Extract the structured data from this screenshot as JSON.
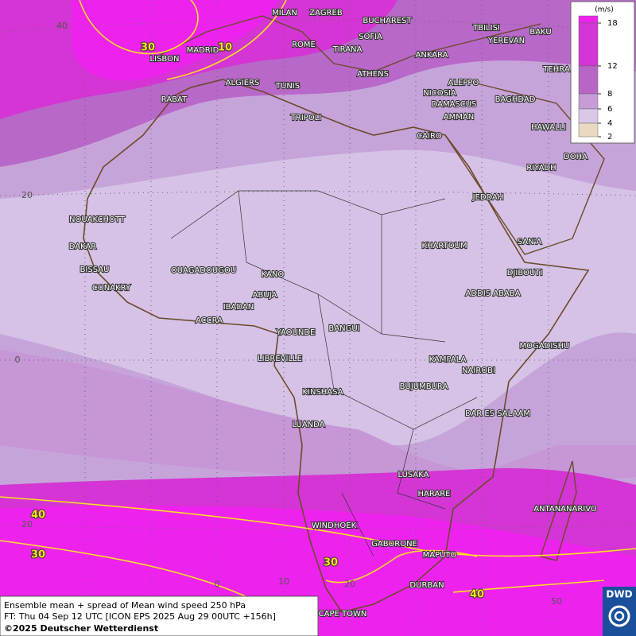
{
  "map": {
    "legend": {
      "unit": "(m/s)",
      "levels": [
        {
          "value": 18,
          "color": "#ee22ee"
        },
        {
          "value": 12,
          "color": "#d435d4"
        },
        {
          "value": 8,
          "color": "#b866c6"
        },
        {
          "value": 6,
          "color": "#c79bd8"
        },
        {
          "value": 4,
          "color": "#dac8e8"
        },
        {
          "value": 2,
          "color": "#ead9c0"
        }
      ]
    },
    "cities": [
      "MILAN",
      "ZAGREB",
      "BUCHAREST",
      "TBILISI",
      "BAKU",
      "SOFIA",
      "YEREVAN",
      "ROME",
      "TIRANA",
      "ANKARA",
      "LISBON",
      "MADRID",
      "TEHRA",
      "ATHENS",
      "ALGIERS",
      "TUNIS",
      "ALEPPO",
      "NICOSIA",
      "BAGHDAD",
      "RABAT",
      "DAMASCUS",
      "TRIPOLI",
      "AMMAN",
      "HAWALLI",
      "CAIRO",
      "DOHA",
      "RIYADH",
      "JEDDAH",
      "NOUAKCHOTT",
      "SAN'A",
      "KHARTOUM",
      "DAKAR",
      "BISSAU",
      "DJIBOUTI",
      "OUAGADOUGOU",
      "KANO",
      "CONAKRY",
      "ABUJA",
      "ADDIS ABABA",
      "IBADAN",
      "ACCRA",
      "BANGUI",
      "YAOUNDE",
      "MOGADISHU",
      "LIBREVILLE",
      "KAMPALA",
      "NAIROBI",
      "KINSHASA",
      "BUJUMBURA",
      "DAR ES SALAAM",
      "LUANDA",
      "LUSAKA",
      "HARARE",
      "ANTANANARIVO",
      "WINDHOEK",
      "GABORONE",
      "MAPUTO",
      "DURBAN",
      "CAPE TOWN"
    ],
    "contour_labels": [
      "30",
      "10",
      "40",
      "30",
      "30",
      "40"
    ],
    "lat_labels": [
      "40",
      "20",
      "0",
      "20"
    ],
    "lon_labels": [
      "0",
      "10",
      "20",
      "50"
    ],
    "footer": {
      "line1": "Ensemble mean + spread of Mean wind speed 250 hPa",
      "line2": "FT: Thu 04 Sep 12 UTC [ICON EPS 2025 Aug 29 00UTC +156h]",
      "line3": "©2025 Deutscher Wetterdienst"
    },
    "logo": "DWD"
  }
}
